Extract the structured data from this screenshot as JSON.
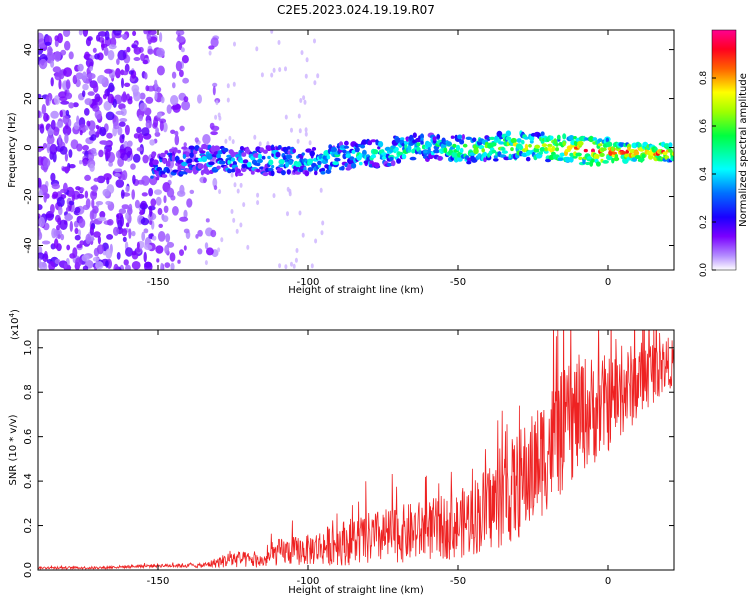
{
  "title": "C2E5.2023.024.19.19.R07",
  "chart_data": [
    {
      "type": "heatmap",
      "xlabel": "Height of straight line (km)",
      "ylabel": "Frequency (Hz)",
      "xlim": [
        -190,
        22
      ],
      "ylim": [
        -50,
        48
      ],
      "xticks": [
        -150,
        -100,
        -50,
        0
      ],
      "yticks": [
        -40,
        -20,
        0,
        20,
        40
      ],
      "colorbar": {
        "label": "Normalized spectral amplitude",
        "range": [
          0,
          1
        ],
        "ticks": [
          0.0,
          0.2,
          0.4,
          0.6,
          0.8
        ],
        "colormap": [
          "#ffffff",
          "#7a00ff",
          "#0000ff",
          "#00ffff",
          "#00ff00",
          "#ffff00",
          "#ff0000",
          "#ff0090"
        ]
      },
      "ridge": {
        "x": [
          -150,
          -140,
          -130,
          -120,
          -110,
          -100,
          -90,
          -80,
          -70,
          -60,
          -50,
          -40,
          -30,
          -20,
          -10,
          0,
          10,
          20
        ],
        "center_hz": [
          -8,
          -5,
          -5,
          -6,
          -5,
          -6,
          -4,
          -3,
          -1,
          0,
          -1,
          0,
          1,
          0,
          -1,
          -2,
          -2,
          -2
        ],
        "amplitude": [
          0.3,
          0.3,
          0.35,
          0.35,
          0.4,
          0.4,
          0.45,
          0.45,
          0.5,
          0.5,
          0.55,
          0.6,
          0.7,
          0.75,
          0.9,
          0.95,
          0.95,
          0.9
        ]
      },
      "noise_region_x": [
        -190,
        -130
      ]
    },
    {
      "type": "line",
      "xlabel": "Height of straight line (km)",
      "ylabel": "SNR (10 * v/v)",
      "multiplier_label": "(x10",
      "multiplier_exp": "4",
      "xlim": [
        -190,
        22
      ],
      "ylim": [
        0,
        1.08
      ],
      "xticks": [
        -150,
        -100,
        -50,
        0
      ],
      "yticks": [
        0.0,
        0.2,
        0.4,
        0.6,
        0.8,
        1.0
      ],
      "color": "#ee2222",
      "series": [
        {
          "x": [
            -190,
            -170,
            -150,
            -135,
            -125,
            -115,
            -110,
            -100,
            -90,
            -80,
            -70,
            -60,
            -50,
            -40,
            -35,
            -30,
            -25,
            -20,
            -15,
            -10,
            -5,
            0,
            5,
            10,
            15,
            20,
            22
          ],
          "y": [
            0.01,
            0.01,
            0.02,
            0.02,
            0.05,
            0.04,
            0.08,
            0.09,
            0.12,
            0.14,
            0.16,
            0.18,
            0.2,
            0.28,
            0.32,
            0.38,
            0.45,
            0.55,
            0.62,
            0.7,
            0.72,
            0.75,
            0.8,
            0.85,
            0.9,
            0.93,
            0.93
          ],
          "noise_amp": [
            0.005,
            0.006,
            0.008,
            0.01,
            0.04,
            0.03,
            0.06,
            0.07,
            0.1,
            0.12,
            0.13,
            0.14,
            0.15,
            0.2,
            0.22,
            0.25,
            0.26,
            0.28,
            0.28,
            0.27,
            0.25,
            0.22,
            0.2,
            0.18,
            0.15,
            0.12,
            0.1
          ]
        }
      ]
    }
  ]
}
